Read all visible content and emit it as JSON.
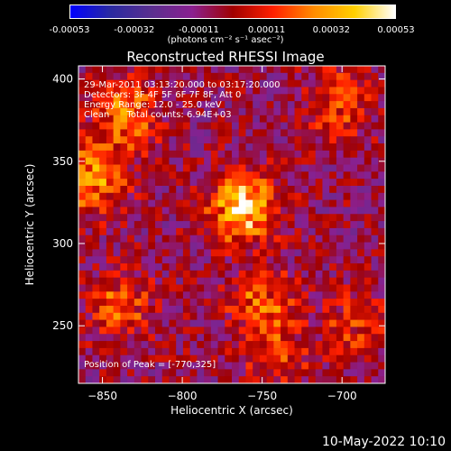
{
  "colorbar": {
    "ticks": [
      "-0.00053",
      "-0.00032",
      "-0.00011",
      "0.00011",
      "0.00032",
      "0.00053"
    ],
    "unit_label": "(photons cm⁻² s⁻¹ asec⁻²)"
  },
  "chart_data": {
    "type": "heatmap",
    "title": "Reconstructed RHESSI Image",
    "xlabel": "Heliocentric X (arcsec)",
    "ylabel": "Heliocentric Y (arcsec)",
    "xlim": [
      -865,
      -673
    ],
    "ylim": [
      215,
      408
    ],
    "xticks": [
      -850,
      -800,
      -750,
      -700
    ],
    "yticks": [
      250,
      300,
      350,
      400
    ],
    "value_range": [
      -0.00053,
      0.00053
    ],
    "colormap": [
      "#0000ff",
      "#2a2aa0",
      "#5a2f8f",
      "#8a2090",
      "#a00000",
      "#ff2000",
      "#ff8c00",
      "#ffd000",
      "#ffffff"
    ],
    "bright_regions": [
      {
        "x": -762,
        "y": 322,
        "peak": 0.00053
      },
      {
        "x": -855,
        "y": 340,
        "peak": 0.00038
      },
      {
        "x": -835,
        "y": 378,
        "peak": 0.0003
      },
      {
        "x": -838,
        "y": 262,
        "peak": 0.00026
      },
      {
        "x": -750,
        "y": 262,
        "peak": 0.0003
      },
      {
        "x": -702,
        "y": 385,
        "peak": 0.00024
      },
      {
        "x": -692,
        "y": 250,
        "peak": 0.0002
      },
      {
        "x": -740,
        "y": 228,
        "peak": 0.00016
      }
    ],
    "annotations": {
      "time_range": "29-Mar-2011 03:13:20.000 to 03:17:20.000",
      "detectors": "Detectors: 3F 4F 5F 6F 7F 8F, Att 0",
      "energy": "Energy Range: 12.0 - 25.0 keV",
      "method": "Clean      Total counts: 6.94E+03",
      "peak": "Position of Peak = [-770,325]"
    }
  },
  "footer": {
    "date": "10-May-2022 10:10"
  }
}
